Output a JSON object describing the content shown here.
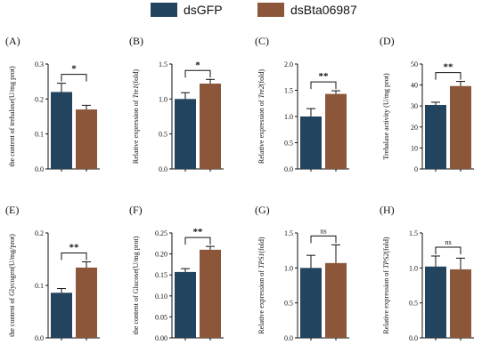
{
  "legend": [
    {
      "label": "dsGFP",
      "color": "#23445e"
    },
    {
      "label": "dsBta06987",
      "color": "#8b563a"
    }
  ],
  "chart_data": [
    {
      "type": "bar",
      "panel": "(A)",
      "ylabel": "the content of trehalose(U/mg prot)",
      "ylabel_italic": "",
      "ylim": [
        0,
        0.3
      ],
      "ticks": [
        "0.0",
        "0.1",
        "0.2",
        "0.3"
      ],
      "series": [
        {
          "name": "dsGFP",
          "value": 0.22,
          "error": 0.025
        },
        {
          "name": "dsBta06987",
          "value": 0.17,
          "error": 0.012
        }
      ],
      "significance": "*"
    },
    {
      "type": "bar",
      "panel": "(B)",
      "ylabel": "Relative expression of Tre1(fold)",
      "ylabel_italic": "Tre1",
      "ylim": [
        0,
        1.5
      ],
      "ticks": [
        "0.0",
        "0.5",
        "1.0",
        "1.5"
      ],
      "series": [
        {
          "name": "dsGFP",
          "value": 1.0,
          "error": 0.09
        },
        {
          "name": "dsBta06987",
          "value": 1.22,
          "error": 0.06
        }
      ],
      "significance": "*"
    },
    {
      "type": "bar",
      "panel": "(C)",
      "ylabel": "Relative expression of Tre2(fold)",
      "ylabel_italic": "Tre2",
      "ylim": [
        0,
        2.0
      ],
      "ticks": [
        "0.0",
        "0.5",
        "1.0",
        "1.5",
        "2.0"
      ],
      "series": [
        {
          "name": "dsGFP",
          "value": 1.0,
          "error": 0.15
        },
        {
          "name": "dsBta06987",
          "value": 1.43,
          "error": 0.06
        }
      ],
      "significance": "**"
    },
    {
      "type": "bar",
      "panel": "(D)",
      "ylabel": "Trehalase activity (U/mg prot)",
      "ylabel_italic": "",
      "ylim": [
        0,
        50
      ],
      "ticks": [
        "0",
        "10",
        "20",
        "30",
        "40",
        "50"
      ],
      "series": [
        {
          "name": "dsGFP",
          "value": 30.5,
          "error": 1.3
        },
        {
          "name": "dsBta06987",
          "value": 39.5,
          "error": 2.2
        }
      ],
      "significance": "**"
    },
    {
      "type": "bar",
      "panel": "(E)",
      "ylabel": "the content of Glycogen(U/mg/prot)",
      "ylabel_italic": "",
      "ylim": [
        0,
        0.2
      ],
      "ticks": [
        "0.0",
        "0.1",
        "0.2"
      ],
      "series": [
        {
          "name": "dsGFP",
          "value": 0.086,
          "error": 0.008
        },
        {
          "name": "dsBta06987",
          "value": 0.134,
          "error": 0.011
        }
      ],
      "significance": "**"
    },
    {
      "type": "bar",
      "panel": "(F)",
      "ylabel": "the content of Glucose(U/mg prot)",
      "ylabel_italic": "",
      "ylim": [
        0,
        0.25
      ],
      "ticks": [
        "0.00",
        "0.05",
        "0.10",
        "0.15",
        "0.20",
        "0.25"
      ],
      "series": [
        {
          "name": "dsGFP",
          "value": 0.157,
          "error": 0.008
        },
        {
          "name": "dsBta06987",
          "value": 0.21,
          "error": 0.008
        }
      ],
      "significance": "**"
    },
    {
      "type": "bar",
      "panel": "(G)",
      "ylabel": "Relative expression of TPS1(fold)",
      "ylabel_italic": "TPS1",
      "ylim": [
        0,
        1.5
      ],
      "ticks": [
        "0.0",
        "0.5",
        "1.0",
        "1.5"
      ],
      "series": [
        {
          "name": "dsGFP",
          "value": 1.0,
          "error": 0.18
        },
        {
          "name": "dsBta06987",
          "value": 1.07,
          "error": 0.26
        }
      ],
      "significance": "ns"
    },
    {
      "type": "bar",
      "panel": "(H)",
      "ylabel": "Relative expression of TPS2(fold)",
      "ylabel_italic": "TPS2",
      "ylim": [
        0,
        1.5
      ],
      "ticks": [
        "0.0",
        "0.5",
        "1.0",
        "1.5"
      ],
      "series": [
        {
          "name": "dsGFP",
          "value": 1.02,
          "error": 0.15
        },
        {
          "name": "dsBta06987",
          "value": 0.98,
          "error": 0.16
        }
      ],
      "significance": "ns"
    }
  ]
}
